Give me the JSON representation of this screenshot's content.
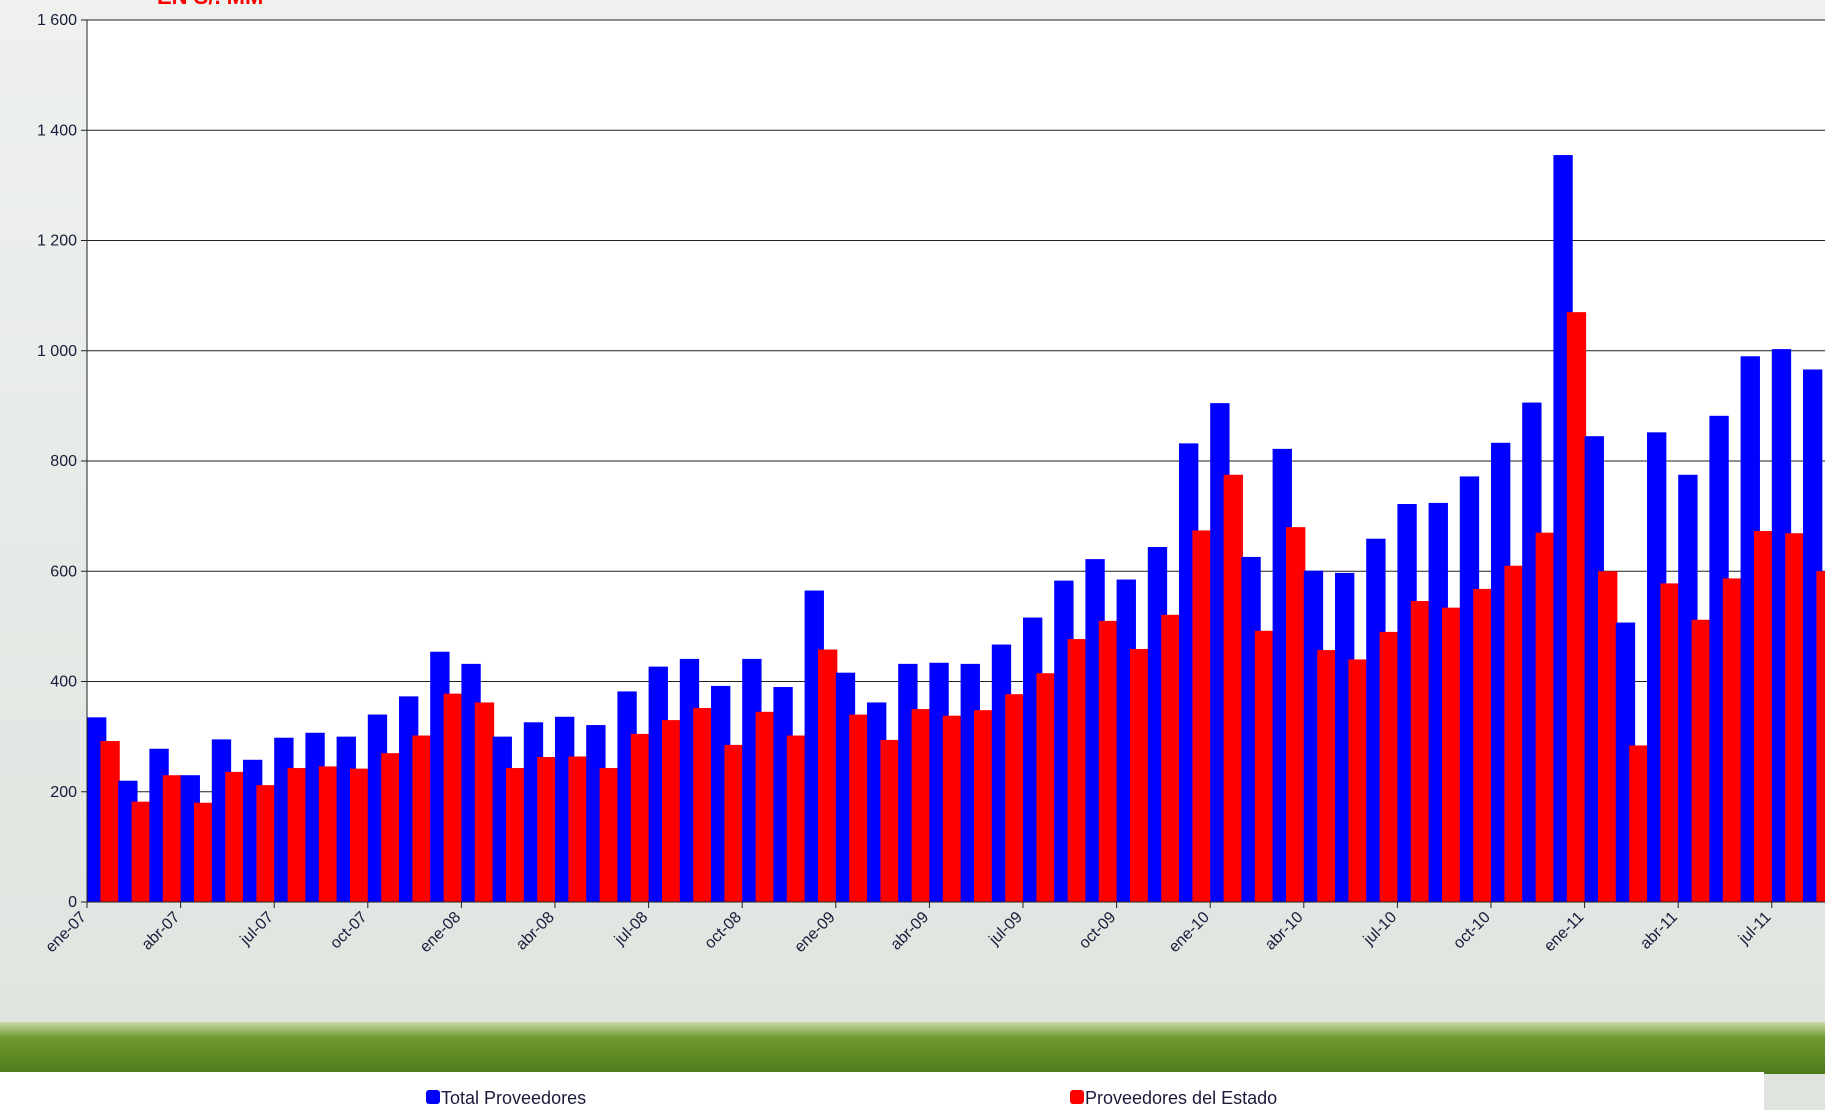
{
  "chart_data": {
    "type": "bar",
    "title": "EN S/. MM",
    "categories": [
      "ene-07",
      null,
      null,
      "abr-07",
      null,
      null,
      "jul-07",
      null,
      null,
      "oct-07",
      null,
      null,
      "ene-08",
      null,
      null,
      "abr-08",
      null,
      null,
      "jul-08",
      null,
      null,
      "oct-08",
      null,
      null,
      "ene-09",
      null,
      null,
      "abr-09",
      null,
      null,
      "jul-09",
      null,
      null,
      "oct-09",
      null,
      null,
      "ene-10",
      null,
      null,
      "abr-10",
      null,
      null,
      "jul-10",
      null,
      null,
      "oct-10",
      null,
      null,
      "ene-11",
      null,
      null,
      "abr-11",
      null,
      null,
      "jul-11",
      null
    ],
    "series": [
      {
        "name": "Total Proveedores",
        "color": "#0000ff",
        "values": [
          335,
          220,
          278,
          230,
          295,
          258,
          298,
          307,
          300,
          340,
          373,
          454,
          432,
          300,
          326,
          336,
          321,
          382,
          427,
          441,
          392,
          441,
          390,
          565,
          416,
          362,
          432,
          434,
          432,
          467,
          516,
          583,
          622,
          585,
          644,
          832,
          905,
          626,
          822,
          601,
          597,
          659,
          722,
          724,
          772,
          833,
          906,
          1355,
          845,
          507,
          852,
          775,
          882,
          990,
          1003,
          966
        ]
      },
      {
        "name": "Proveedores del Estado",
        "color": "#ff0000",
        "values": [
          292,
          182,
          230,
          180,
          236,
          212,
          243,
          246,
          242,
          270,
          302,
          378,
          362,
          243,
          263,
          264,
          243,
          305,
          330,
          352,
          285,
          345,
          302,
          458,
          340,
          294,
          350,
          338,
          348,
          377,
          415,
          477,
          510,
          459,
          521,
          674,
          775,
          492,
          680,
          457,
          440,
          490,
          546,
          534,
          568,
          610,
          670,
          1070,
          600,
          284,
          578,
          512,
          587,
          673,
          669,
          600
        ]
      }
    ],
    "ylim": [
      0,
      1600
    ],
    "yticks": [
      0,
      200,
      400,
      600,
      800,
      {
        "value": 1000,
        "label": "1 000"
      },
      {
        "value": 1200,
        "label": "1 200"
      },
      {
        "value": 1400,
        "label": "1 400"
      },
      {
        "value": 1600,
        "label": "1 600"
      }
    ],
    "grid": true
  }
}
